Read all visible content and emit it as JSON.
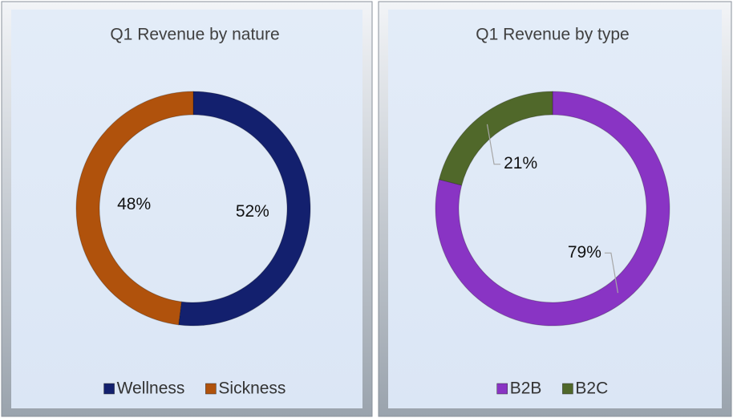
{
  "chart_data": [
    {
      "type": "donut",
      "title": "Q1 Revenue by nature",
      "categories": [
        "Wellness",
        "Sickness"
      ],
      "values": [
        52,
        48
      ],
      "value_labels": [
        "52%",
        "48%"
      ],
      "colors": [
        "#13206e",
        "#b0520c"
      ],
      "legend": "bottom"
    },
    {
      "type": "donut",
      "title": "Q1 Revenue by type",
      "categories": [
        "B2B",
        "B2C"
      ],
      "values": [
        79,
        21
      ],
      "value_labels": [
        "79%",
        "21%"
      ],
      "colors": [
        "#8934c4",
        "#50682a"
      ],
      "legend": "bottom"
    }
  ]
}
